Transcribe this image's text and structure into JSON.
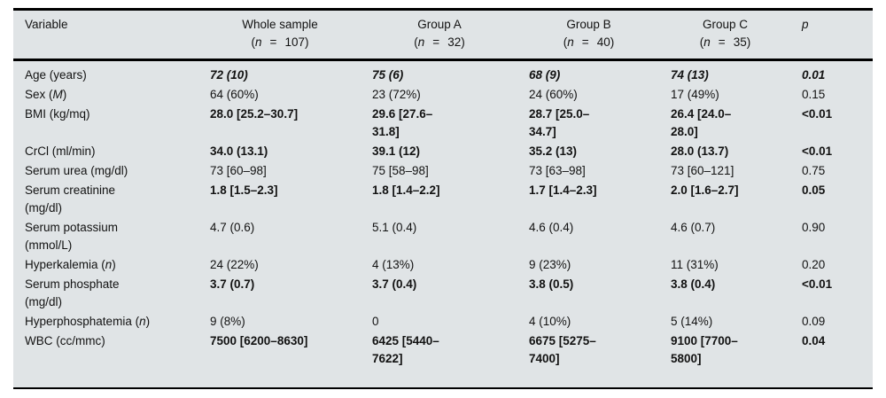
{
  "colors": {
    "table_background": "#e0e4e6",
    "border": "#000000",
    "text": "#121212"
  },
  "table": {
    "header": {
      "variable_label": "Variable",
      "p_label": "p",
      "groups": [
        {
          "title": "Whole sample",
          "n_open": "(",
          "n_symbol": "n",
          "n_eq": "=",
          "n_close": "107)"
        },
        {
          "title": "Group A",
          "n_open": "(",
          "n_symbol": "n",
          "n_eq": "=",
          "n_close": "32)"
        },
        {
          "title": "Group B",
          "n_open": "(",
          "n_symbol": "n",
          "n_eq": "=",
          "n_close": "40)"
        },
        {
          "title": "Group C",
          "n_open": "(",
          "n_symbol": "n",
          "n_eq": "=",
          "n_close": "35)"
        }
      ]
    },
    "rows": [
      {
        "variable": {
          "pre": "Age (years)",
          "it": "",
          "post": ""
        },
        "values": [
          "72 (10)",
          "75 (6)",
          "68 (9)",
          "74 (13)"
        ],
        "p": "0.01",
        "emphasis": "bold-italic"
      },
      {
        "variable": {
          "pre": "Sex (",
          "it": "M",
          "post": ")"
        },
        "values": [
          "64 (60%)",
          "23 (72%)",
          "24 (60%)",
          "17 (49%)"
        ],
        "p": "0.15",
        "emphasis": "normal"
      },
      {
        "variable": {
          "pre": "BMI (kg/mq)",
          "it": "",
          "post": ""
        },
        "values": [
          "28.0 [25.2–30.7]",
          "29.6 [27.6–\n31.8]",
          "28.7 [25.0–\n34.7]",
          "26.4 [24.0–\n28.0]"
        ],
        "p": "<0.01",
        "emphasis": "bold"
      },
      {
        "variable": {
          "pre": "CrCl (ml/min)",
          "it": "",
          "post": ""
        },
        "values": [
          "34.0 (13.1)",
          "39.1 (12)",
          "35.2 (13)",
          "28.0 (13.7)"
        ],
        "p": "<0.01",
        "emphasis": "bold"
      },
      {
        "variable": {
          "pre": "Serum urea (mg/dl)",
          "it": "",
          "post": ""
        },
        "values": [
          "73 [60–98]",
          "75 [58–98]",
          "73 [63–98]",
          "73 [60–121]"
        ],
        "p": "0.75",
        "emphasis": "normal"
      },
      {
        "variable": {
          "pre": "Serum creatinine\n(mg/dl)",
          "it": "",
          "post": ""
        },
        "values": [
          "1.8 [1.5–2.3]",
          "1.8 [1.4–2.2]",
          "1.7 [1.4–2.3]",
          "2.0 [1.6–2.7]"
        ],
        "p": "0.05",
        "emphasis": "bold"
      },
      {
        "variable": {
          "pre": "Serum potassium\n(mmol/L)",
          "it": "",
          "post": ""
        },
        "values": [
          "4.7 (0.6)",
          "5.1 (0.4)",
          "4.6 (0.4)",
          "4.6 (0.7)"
        ],
        "p": "0.90",
        "emphasis": "normal"
      },
      {
        "variable": {
          "pre": "Hyperkalemia (",
          "it": "n",
          "post": ")"
        },
        "values": [
          "24 (22%)",
          "4 (13%)",
          "9 (23%)",
          "11 (31%)"
        ],
        "p": "0.20",
        "emphasis": "normal"
      },
      {
        "variable": {
          "pre": "Serum phosphate\n(mg/dl)",
          "it": "",
          "post": ""
        },
        "values": [
          "3.7 (0.7)",
          "3.7 (0.4)",
          "3.8 (0.5)",
          "3.8 (0.4)"
        ],
        "p": "<0.01",
        "emphasis": "bold"
      },
      {
        "variable": {
          "pre": "Hyperphosphatemia (",
          "it": "n",
          "post": ")"
        },
        "values": [
          "9 (8%)",
          "0",
          "4 (10%)",
          "5 (14%)"
        ],
        "p": "0.09",
        "emphasis": "normal"
      },
      {
        "variable": {
          "pre": "WBC (cc/mmc)",
          "it": "",
          "post": ""
        },
        "values": [
          "7500 [6200–8630]",
          "6425 [5440–\n7622]",
          "6675 [5275–\n7400]",
          "9100 [7700–\n5800]"
        ],
        "p": "0.04",
        "emphasis": "bold"
      }
    ]
  }
}
